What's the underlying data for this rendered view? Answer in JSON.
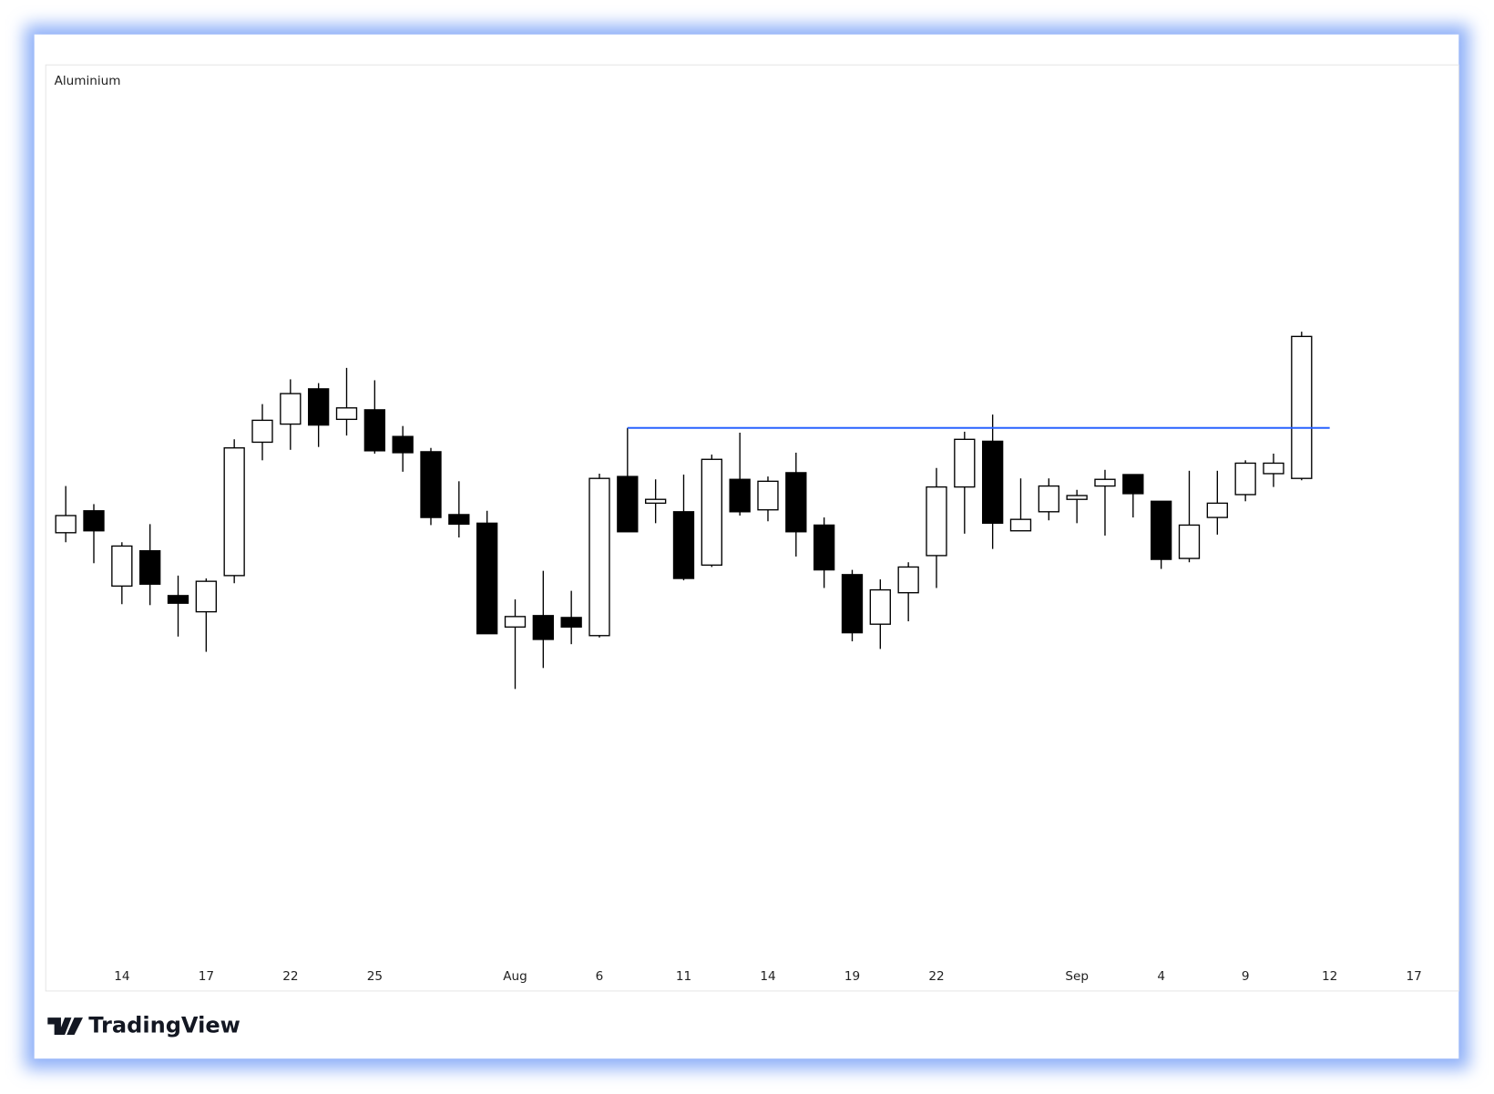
{
  "chart_data": {
    "type": "candlestick",
    "title": "Aluminium",
    "categories": [
      null,
      null,
      "14",
      null,
      null,
      "17",
      null,
      null,
      "22",
      null,
      null,
      "25",
      null,
      null,
      null,
      null,
      "Aug",
      null,
      null,
      "6",
      null,
      null,
      "11",
      null,
      null,
      "14",
      null,
      null,
      "19",
      null,
      null,
      "22",
      null,
      null,
      null,
      null,
      "Sep",
      null,
      null,
      "4",
      null,
      null,
      "9",
      null,
      null,
      "12",
      null,
      null,
      "17"
    ],
    "open": [
      48.1,
      50.4,
      42.5,
      46.2,
      41.5,
      39.8,
      43.6,
      57.6,
      59.5,
      63.2,
      60.0,
      61.0,
      58.2,
      56.6,
      50.0,
      49.1,
      38.2,
      39.4,
      39.2,
      37.3,
      54.0,
      51.2,
      50.3,
      44.7,
      53.7,
      50.5,
      54.4,
      48.9,
      43.7,
      38.5,
      41.8,
      45.7,
      52.9,
      57.7,
      48.3,
      50.3,
      51.6,
      53.0,
      54.2,
      51.4,
      45.4,
      49.7,
      52.1,
      54.3,
      53.8,
      null,
      null,
      null,
      null
    ],
    "high": [
      53.0,
      51.1,
      47.1,
      49.0,
      43.6,
      43.3,
      57.9,
      61.6,
      64.2,
      63.8,
      65.4,
      64.1,
      59.3,
      57.0,
      53.5,
      50.4,
      41.1,
      44.1,
      42.0,
      54.3,
      59.1,
      53.7,
      54.2,
      56.3,
      58.6,
      54.0,
      56.5,
      49.7,
      44.2,
      43.2,
      45.0,
      54.9,
      58.7,
      60.5,
      53.8,
      53.8,
      52.6,
      54.7,
      54.2,
      51.4,
      54.6,
      54.6,
      55.7,
      56.4,
      69.2,
      null,
      null,
      null,
      null
    ],
    "low": [
      47.1,
      44.9,
      40.6,
      40.5,
      37.2,
      35.6,
      42.8,
      55.7,
      56.8,
      57.1,
      58.3,
      56.4,
      54.5,
      48.9,
      47.6,
      37.5,
      31.7,
      33.9,
      36.4,
      37.1,
      48.2,
      49.1,
      43.1,
      44.5,
      49.9,
      49.3,
      45.6,
      42.3,
      36.7,
      35.9,
      38.8,
      42.3,
      48.0,
      46.4,
      48.3,
      49.4,
      49.1,
      47.8,
      49.7,
      44.3,
      45.0,
      47.9,
      51.4,
      52.9,
      53.6,
      null,
      null,
      null,
      null
    ],
    "close": [
      49.9,
      48.3,
      46.7,
      42.7,
      40.7,
      43.0,
      57.0,
      59.9,
      62.7,
      59.4,
      61.2,
      56.7,
      56.5,
      49.7,
      49.0,
      37.5,
      39.3,
      36.9,
      38.2,
      53.8,
      48.2,
      51.6,
      43.3,
      55.8,
      50.3,
      53.5,
      48.2,
      44.2,
      37.6,
      42.1,
      44.5,
      52.9,
      57.9,
      49.1,
      49.5,
      53.0,
      52.0,
      53.7,
      52.2,
      45.3,
      48.9,
      51.2,
      55.4,
      55.4,
      68.7,
      null,
      null,
      null,
      null
    ],
    "up_color": "#ffffff",
    "down_color": "#000000",
    "reference_line": {
      "value": 59.1,
      "start": 20,
      "end": 45,
      "color": "#2962ff"
    },
    "ylim": [
      0,
      97
    ]
  },
  "footer": {
    "brand": "TradingView"
  }
}
